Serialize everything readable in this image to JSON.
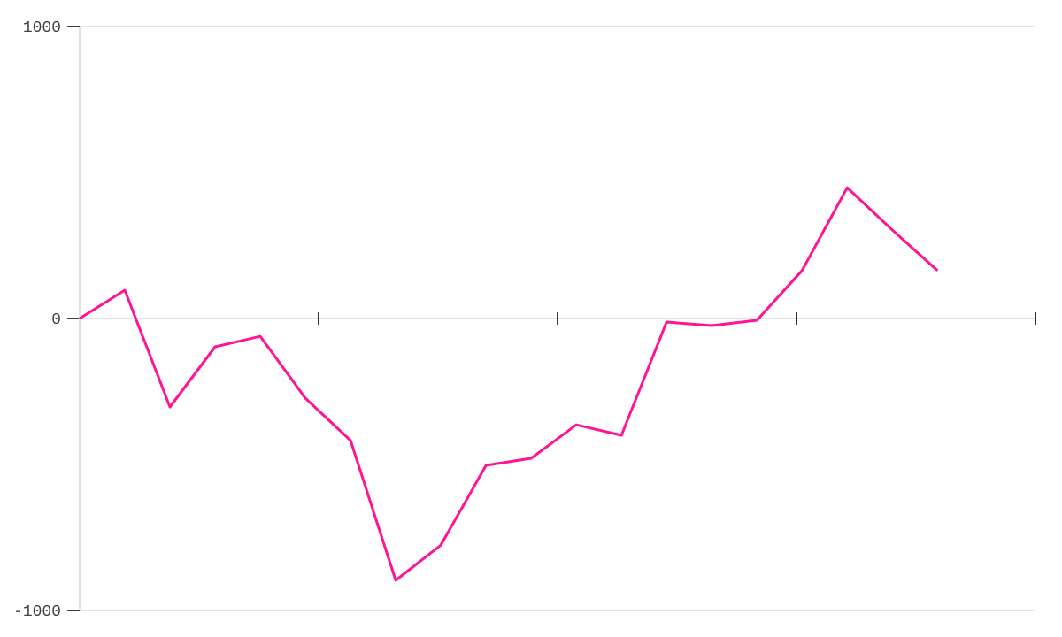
{
  "chart_data": {
    "type": "line",
    "categories": [
      null,
      null,
      null,
      null,
      null,
      null,
      null,
      null,
      null,
      null,
      null,
      null,
      null,
      null,
      null,
      null,
      null,
      null,
      null,
      null
    ],
    "series": [
      {
        "color": "#ff1493",
        "values": [
          0,
          97,
          -303,
          -97,
          -61,
          -273,
          -418,
          -897,
          -776,
          -503,
          -479,
          -364,
          -400,
          -12,
          -24,
          -6,
          164,
          448,
          303,
          164
        ]
      }
    ],
    "ylim": [
      -1000,
      1000
    ],
    "yticks": [
      -1000,
      0,
      1000
    ],
    "grid": "y",
    "marker": "none",
    "line_style": "solid",
    "tick_labels": "y"
  }
}
